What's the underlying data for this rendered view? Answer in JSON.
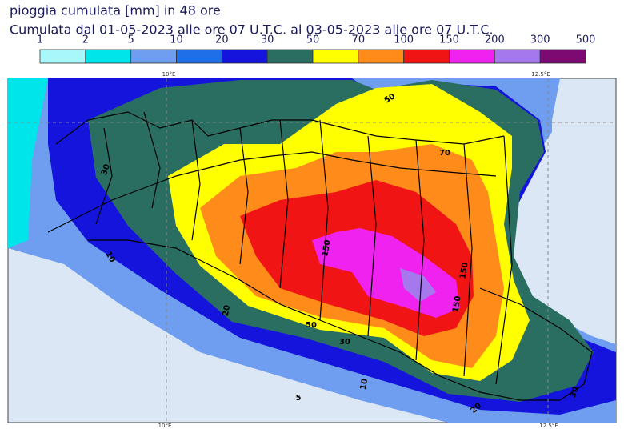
{
  "title": "pioggia cumulata [mm] in 48 ore",
  "subtitle": "Cumulata dal 01-05-2023 alle ore 07 U.T.C. al 03-05-2023 alle ore 07 U.T.C.",
  "colorbar": {
    "levels": [
      1,
      2,
      5,
      10,
      20,
      30,
      50,
      70,
      100,
      150,
      200,
      300,
      500
    ],
    "colors": [
      "#a8f7fb",
      "#00e5ea",
      "#6f9ef0",
      "#1e6fe8",
      "#1414dc",
      "#2a6e62",
      "#ffff00",
      "#ff8c1a",
      "#f01414",
      "#f022f0",
      "#a678ee",
      "#7d0a72"
    ]
  },
  "map": {
    "lon_labels_top": [
      "10°E",
      "12.5°E"
    ],
    "lon_labels_bottom": [
      "10°E",
      "12.5°E"
    ],
    "contour_labels": [
      "50",
      "70",
      "30",
      "10",
      "20",
      "50",
      "30",
      "10",
      "5",
      "20",
      "30",
      "150",
      "150",
      "150"
    ]
  }
}
